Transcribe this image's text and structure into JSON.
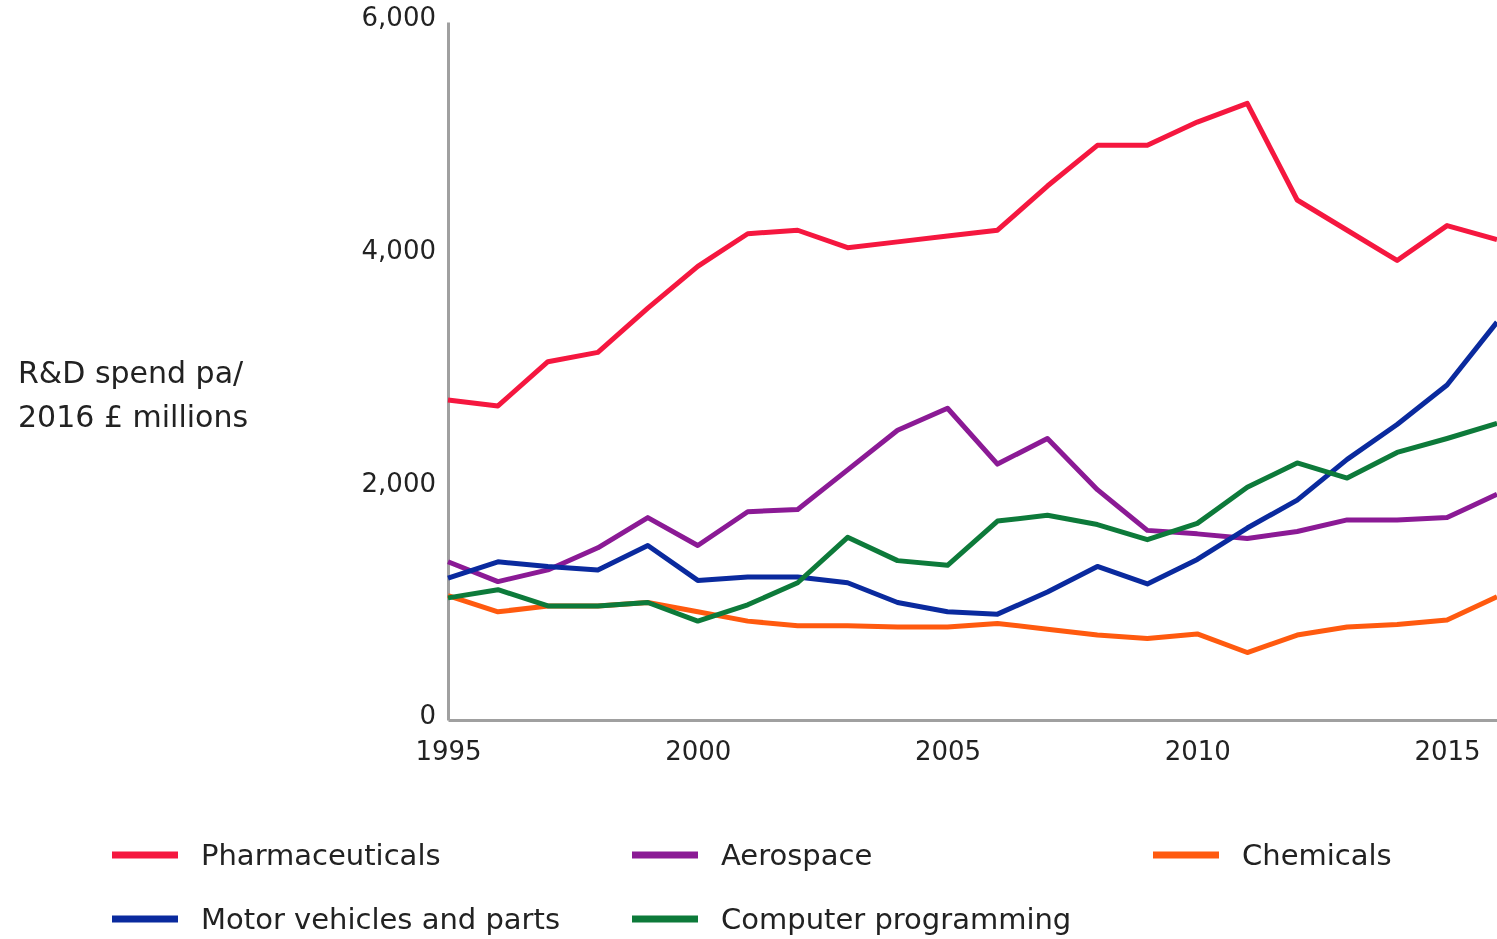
{
  "chart_data": {
    "type": "line",
    "ylabel": "R&D spend pa/\n2016 £ millions",
    "x": [
      1995,
      1996,
      1997,
      1998,
      1999,
      2000,
      2001,
      2002,
      2003,
      2004,
      2005,
      2006,
      2007,
      2008,
      2009,
      2010,
      2011,
      2012,
      2013,
      2014,
      2015,
      2016
    ],
    "xlim": [
      1995,
      2016
    ],
    "xticks": [
      1995,
      2000,
      2005,
      2010,
      2015
    ],
    "ylim": [
      0,
      6000
    ],
    "yticks": [
      {
        "value": 0,
        "label": "0"
      },
      {
        "value": 2000,
        "label": "2,000"
      },
      {
        "value": 4000,
        "label": "4,000"
      },
      {
        "value": 6000,
        "label": "6,000"
      }
    ],
    "grid": false,
    "legend": "bottom",
    "marker": "none",
    "line_style": "solid",
    "series": [
      {
        "name": "Pharmaceuticals",
        "color": "#f5173f",
        "values": [
          2750,
          2700,
          3080,
          3160,
          3540,
          3900,
          4180,
          4210,
          4060,
          4110,
          4160,
          4210,
          4590,
          4940,
          4940,
          5140,
          5300,
          4470,
          4210,
          3950,
          4250,
          4130
        ]
      },
      {
        "name": "Aerospace",
        "color": "#8b1a95",
        "values": [
          1360,
          1190,
          1290,
          1480,
          1740,
          1500,
          1790,
          1810,
          2150,
          2490,
          2680,
          2200,
          2420,
          1980,
          1630,
          1600,
          1560,
          1620,
          1720,
          1720,
          1740,
          1940
        ]
      },
      {
        "name": "Chemicals",
        "color": "#ff5a0f",
        "values": [
          1070,
          930,
          980,
          980,
          1010,
          930,
          850,
          810,
          810,
          800,
          800,
          830,
          780,
          730,
          700,
          740,
          580,
          730,
          800,
          820,
          860,
          1060
        ]
      },
      {
        "name": "Motor vehicles and parts",
        "color": "#0a2a9e",
        "values": [
          1220,
          1360,
          1320,
          1290,
          1500,
          1200,
          1230,
          1230,
          1180,
          1010,
          930,
          910,
          1100,
          1320,
          1170,
          1380,
          1650,
          1890,
          2240,
          2540,
          2880,
          3420
        ]
      },
      {
        "name": "Computer programming",
        "color": "#0d7a3a",
        "values": [
          1050,
          1120,
          980,
          980,
          1010,
          850,
          990,
          1180,
          1570,
          1370,
          1330,
          1710,
          1760,
          1680,
          1550,
          1690,
          2000,
          2210,
          2080,
          2300,
          2420,
          2550
        ]
      }
    ]
  }
}
